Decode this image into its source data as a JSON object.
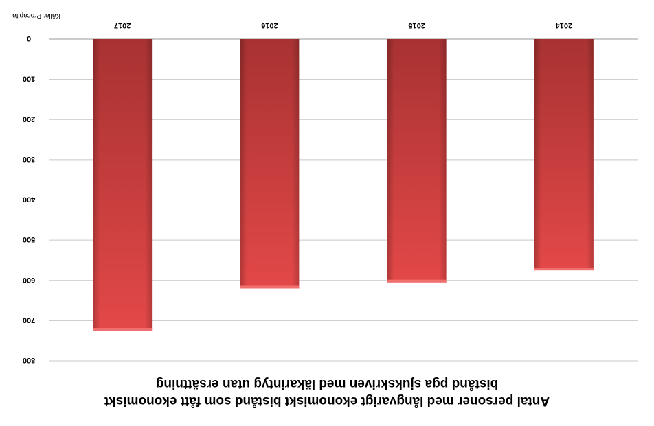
{
  "chart_data": {
    "type": "bar",
    "title_lines": [
      "Antal personer med långvarigt ekonomiskt bistånd som fått ekonomiskt",
      "bistånd pga sjukskriven med läkarintyg utan ersättning"
    ],
    "source": "Källa: Procapita",
    "categories": [
      "2014",
      "2015",
      "2016",
      "2017"
    ],
    "values": [
      575,
      605,
      620,
      725
    ],
    "ylim": [
      0,
      800
    ],
    "yticks": [
      0,
      100,
      200,
      300,
      400,
      500,
      600,
      700,
      800
    ],
    "ytick_labels": [
      "0",
      "100",
      "200",
      "300",
      "400",
      "500",
      "600",
      "700",
      "800"
    ],
    "grid": true,
    "orientation": "rotated-180",
    "bar_color_top": "#e34848",
    "bar_color_bottom": "#a83232"
  }
}
